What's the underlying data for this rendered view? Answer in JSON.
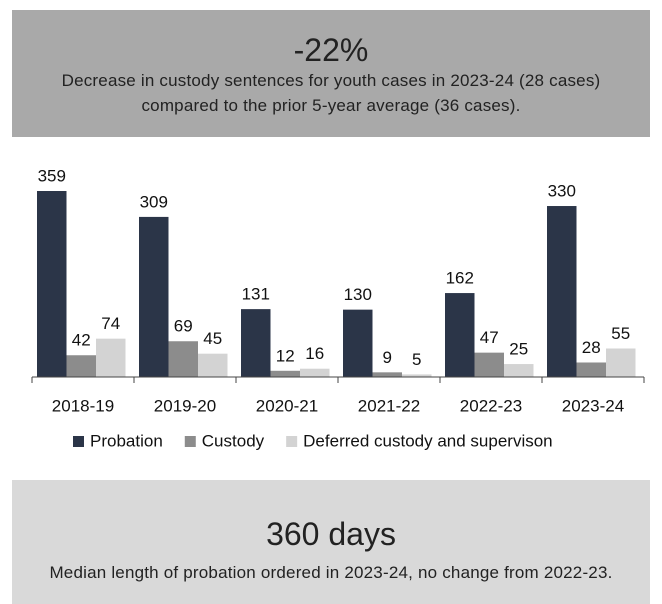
{
  "header": {
    "title": "-22%",
    "lines": [
      "Decrease in custody sentences for youth cases in 2023-24 (28 cases)",
      "compared to the prior 5-year average (36 cases)."
    ]
  },
  "chart_data": {
    "type": "bar",
    "categories": [
      "2018-19",
      "2019-20",
      "2020-21",
      "2021-22",
      "2022-23",
      "2023-24"
    ],
    "series": [
      {
        "name": "Probation",
        "color": "#2b3548",
        "values": [
          359,
          309,
          131,
          130,
          162,
          330
        ]
      },
      {
        "name": "Custody",
        "color": "#8c8c8c",
        "values": [
          42,
          69,
          12,
          9,
          47,
          28
        ]
      },
      {
        "name": "Deferred custody and supervison",
        "color": "#d3d3d3",
        "values": [
          74,
          45,
          16,
          5,
          25,
          55
        ]
      }
    ]
  },
  "footer": {
    "title": "360 days",
    "text": "Median length of probation ordered in 2023-24, no change from 2022-23."
  }
}
